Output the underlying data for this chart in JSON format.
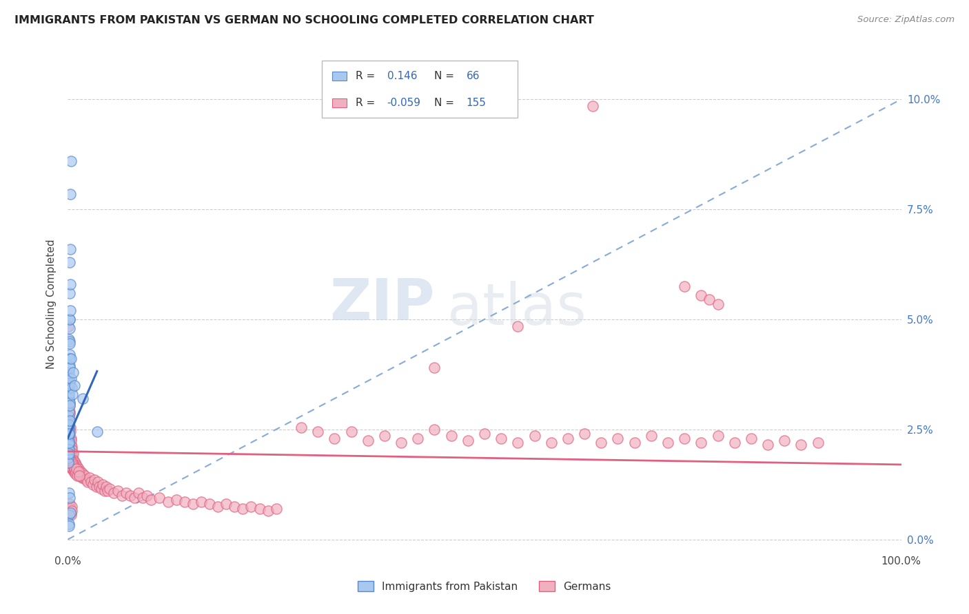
{
  "title": "IMMIGRANTS FROM PAKISTAN VS GERMAN NO SCHOOLING COMPLETED CORRELATION CHART",
  "source": "Source: ZipAtlas.com",
  "ylabel": "No Schooling Completed",
  "yticks": [
    "0.0%",
    "2.5%",
    "5.0%",
    "7.5%",
    "10.0%"
  ],
  "ytick_values": [
    0.0,
    2.5,
    5.0,
    7.5,
    10.0
  ],
  "xlim": [
    0.0,
    100.0
  ],
  "ylim": [
    -0.3,
    11.0
  ],
  "color_blue": "#a8c8f0",
  "color_pink": "#f0b0c0",
  "color_blue_edge": "#5588cc",
  "color_pink_edge": "#e06080",
  "color_blue_line": "#3366bb",
  "color_pink_line": "#e06080",
  "color_diagonal": "#88aad8",
  "background": "#ffffff",
  "watermark_zip": "ZIP",
  "watermark_atlas": "atlas",
  "pakistan_scatter": [
    [
      0.08,
      2.45
    ],
    [
      0.08,
      2.35
    ],
    [
      0.08,
      2.25
    ],
    [
      0.08,
      2.15
    ],
    [
      0.08,
      2.05
    ],
    [
      0.08,
      1.95
    ],
    [
      0.08,
      1.85
    ],
    [
      0.08,
      1.75
    ],
    [
      0.1,
      2.55
    ],
    [
      0.1,
      2.45
    ],
    [
      0.1,
      2.35
    ],
    [
      0.1,
      2.25
    ],
    [
      0.1,
      2.15
    ],
    [
      0.1,
      2.05
    ],
    [
      0.1,
      1.95
    ],
    [
      0.12,
      3.2
    ],
    [
      0.12,
      2.8
    ],
    [
      0.12,
      2.6
    ],
    [
      0.12,
      2.4
    ],
    [
      0.12,
      2.2
    ],
    [
      0.15,
      4.55
    ],
    [
      0.15,
      3.8
    ],
    [
      0.15,
      3.3
    ],
    [
      0.15,
      2.9
    ],
    [
      0.15,
      2.6
    ],
    [
      0.15,
      2.4
    ],
    [
      0.18,
      4.2
    ],
    [
      0.18,
      3.6
    ],
    [
      0.18,
      3.1
    ],
    [
      0.18,
      2.7
    ],
    [
      0.2,
      5.0
    ],
    [
      0.2,
      4.5
    ],
    [
      0.2,
      3.95
    ],
    [
      0.2,
      3.5
    ],
    [
      0.2,
      3.1
    ],
    [
      0.22,
      4.8
    ],
    [
      0.22,
      4.1
    ],
    [
      0.22,
      3.55
    ],
    [
      0.22,
      3.05
    ],
    [
      0.25,
      6.3
    ],
    [
      0.25,
      5.6
    ],
    [
      0.25,
      5.0
    ],
    [
      0.25,
      4.45
    ],
    [
      0.25,
      3.9
    ],
    [
      0.3,
      7.85
    ],
    [
      0.3,
      6.6
    ],
    [
      0.3,
      5.8
    ],
    [
      0.3,
      5.2
    ],
    [
      0.35,
      8.6
    ],
    [
      0.4,
      3.65
    ],
    [
      0.42,
      4.1
    ],
    [
      0.5,
      3.45
    ],
    [
      0.55,
      3.3
    ],
    [
      0.65,
      3.8
    ],
    [
      0.8,
      3.5
    ],
    [
      1.8,
      3.2
    ],
    [
      3.5,
      2.45
    ],
    [
      0.15,
      1.05
    ],
    [
      0.15,
      0.55
    ],
    [
      0.25,
      0.95
    ],
    [
      0.3,
      0.6
    ],
    [
      0.1,
      0.35
    ],
    [
      0.12,
      0.3
    ]
  ],
  "german_scatter": [
    [
      0.08,
      4.85
    ],
    [
      0.12,
      3.5
    ],
    [
      0.15,
      3.2
    ],
    [
      0.18,
      2.9
    ],
    [
      0.2,
      3.05
    ],
    [
      0.22,
      2.7
    ],
    [
      0.25,
      2.85
    ],
    [
      0.28,
      2.55
    ],
    [
      0.3,
      2.45
    ],
    [
      0.35,
      2.3
    ],
    [
      0.38,
      2.15
    ],
    [
      0.4,
      2.0
    ],
    [
      0.42,
      2.25
    ],
    [
      0.45,
      2.1
    ],
    [
      0.48,
      1.95
    ],
    [
      0.5,
      2.05
    ],
    [
      0.55,
      1.85
    ],
    [
      0.6,
      1.95
    ],
    [
      0.65,
      1.8
    ],
    [
      0.7,
      1.7
    ],
    [
      0.75,
      1.8
    ],
    [
      0.8,
      1.65
    ],
    [
      0.85,
      1.75
    ],
    [
      0.9,
      1.6
    ],
    [
      0.95,
      1.7
    ],
    [
      1.0,
      1.55
    ],
    [
      1.1,
      1.65
    ],
    [
      1.2,
      1.5
    ],
    [
      1.3,
      1.6
    ],
    [
      1.4,
      1.45
    ],
    [
      1.5,
      1.55
    ],
    [
      1.6,
      1.45
    ],
    [
      1.7,
      1.4
    ],
    [
      1.8,
      1.5
    ],
    [
      1.9,
      1.4
    ],
    [
      2.0,
      1.45
    ],
    [
      2.2,
      1.35
    ],
    [
      2.4,
      1.3
    ],
    [
      2.6,
      1.4
    ],
    [
      2.8,
      1.3
    ],
    [
      3.0,
      1.25
    ],
    [
      3.2,
      1.35
    ],
    [
      3.4,
      1.2
    ],
    [
      3.6,
      1.3
    ],
    [
      3.8,
      1.2
    ],
    [
      4.0,
      1.15
    ],
    [
      4.2,
      1.25
    ],
    [
      4.4,
      1.1
    ],
    [
      4.6,
      1.2
    ],
    [
      4.8,
      1.1
    ],
    [
      5.0,
      1.15
    ],
    [
      5.5,
      1.05
    ],
    [
      6.0,
      1.1
    ],
    [
      6.5,
      1.0
    ],
    [
      7.0,
      1.05
    ],
    [
      7.5,
      1.0
    ],
    [
      8.0,
      0.95
    ],
    [
      8.5,
      1.05
    ],
    [
      9.0,
      0.95
    ],
    [
      9.5,
      1.0
    ],
    [
      10.0,
      0.9
    ],
    [
      11.0,
      0.95
    ],
    [
      12.0,
      0.85
    ],
    [
      13.0,
      0.9
    ],
    [
      14.0,
      0.85
    ],
    [
      15.0,
      0.8
    ],
    [
      16.0,
      0.85
    ],
    [
      17.0,
      0.8
    ],
    [
      18.0,
      0.75
    ],
    [
      19.0,
      0.8
    ],
    [
      20.0,
      0.75
    ],
    [
      21.0,
      0.7
    ],
    [
      22.0,
      0.75
    ],
    [
      23.0,
      0.7
    ],
    [
      24.0,
      0.65
    ],
    [
      25.0,
      0.7
    ],
    [
      0.18,
      1.85
    ],
    [
      0.22,
      1.75
    ],
    [
      0.28,
      1.65
    ],
    [
      0.32,
      1.8
    ],
    [
      0.38,
      1.7
    ],
    [
      0.42,
      1.65
    ],
    [
      0.48,
      1.6
    ],
    [
      0.52,
      1.75
    ],
    [
      0.58,
      1.6
    ],
    [
      0.62,
      1.7
    ],
    [
      0.68,
      1.55
    ],
    [
      0.72,
      1.65
    ],
    [
      0.78,
      1.55
    ],
    [
      0.82,
      1.6
    ],
    [
      0.88,
      1.5
    ],
    [
      0.92,
      1.55
    ],
    [
      1.05,
      1.6
    ],
    [
      1.15,
      1.45
    ],
    [
      1.25,
      1.55
    ],
    [
      1.35,
      1.45
    ],
    [
      28.0,
      2.55
    ],
    [
      30.0,
      2.45
    ],
    [
      32.0,
      2.3
    ],
    [
      34.0,
      2.45
    ],
    [
      36.0,
      2.25
    ],
    [
      38.0,
      2.35
    ],
    [
      40.0,
      2.2
    ],
    [
      42.0,
      2.3
    ],
    [
      44.0,
      2.5
    ],
    [
      46.0,
      2.35
    ],
    [
      48.0,
      2.25
    ],
    [
      50.0,
      2.4
    ],
    [
      52.0,
      2.3
    ],
    [
      54.0,
      2.2
    ],
    [
      56.0,
      2.35
    ],
    [
      58.0,
      2.2
    ],
    [
      60.0,
      2.3
    ],
    [
      62.0,
      2.4
    ],
    [
      64.0,
      2.2
    ],
    [
      66.0,
      2.3
    ],
    [
      68.0,
      2.2
    ],
    [
      70.0,
      2.35
    ],
    [
      72.0,
      2.2
    ],
    [
      74.0,
      2.3
    ],
    [
      76.0,
      2.2
    ],
    [
      78.0,
      2.35
    ],
    [
      80.0,
      2.2
    ],
    [
      82.0,
      2.3
    ],
    [
      84.0,
      2.15
    ],
    [
      86.0,
      2.25
    ],
    [
      88.0,
      2.15
    ],
    [
      90.0,
      2.2
    ],
    [
      63.0,
      9.85
    ],
    [
      74.0,
      5.75
    ],
    [
      76.0,
      5.55
    ],
    [
      77.0,
      5.45
    ],
    [
      78.0,
      5.35
    ],
    [
      54.0,
      4.85
    ],
    [
      44.0,
      3.9
    ],
    [
      0.18,
      0.75
    ],
    [
      0.25,
      0.8
    ],
    [
      0.3,
      0.7
    ],
    [
      0.35,
      0.6
    ],
    [
      0.4,
      0.55
    ],
    [
      0.45,
      0.75
    ],
    [
      0.5,
      0.65
    ]
  ]
}
